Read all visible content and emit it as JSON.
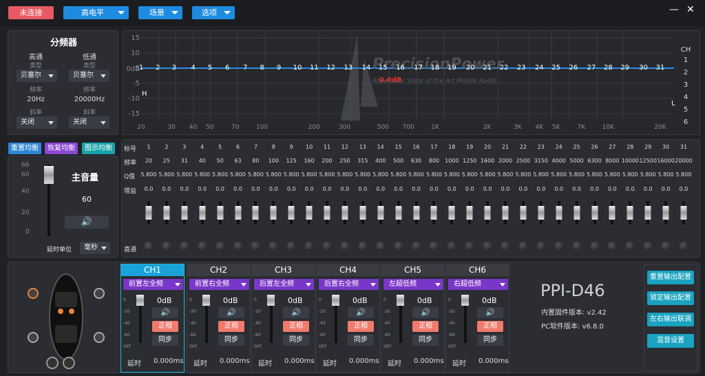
{
  "topbar": {
    "connect": "未连接",
    "level": "高电平",
    "scene": "场景",
    "options": "选项",
    "minimize": "—",
    "close": "✕"
  },
  "crossover": {
    "title": "分频器",
    "hp_label": "高通",
    "lp_label": "低通",
    "type_label": "类型",
    "hp_type": "贝塞尔",
    "lp_type": "贝塞尔",
    "freq_label": "频率",
    "hp_freq": "20Hz",
    "lp_freq": "20000Hz",
    "slope_label": "斜率",
    "hp_slope": "关闭",
    "lp_slope": "关闭"
  },
  "graph": {
    "y_labels": [
      "15",
      "10",
      "5",
      "0dB",
      "-5",
      "-10",
      "-15"
    ],
    "x_labels": [
      "20",
      "30",
      "40",
      "50",
      "70",
      "100",
      "200",
      "300",
      "500",
      "700",
      "1K",
      "2K",
      "3K",
      "4K",
      "5K",
      "7K",
      "10K",
      "20K"
    ],
    "h_marker": "H",
    "l_marker": "L",
    "db_readout": "0.0dB",
    "watermark": "PrecisionPower",
    "watermark_sub": "Absolutely State of the Art Mobile Audio",
    "ch_title": "CH",
    "ch_list": [
      "1",
      "2",
      "3",
      "4",
      "5",
      "6"
    ],
    "line_color": "#2e8be6"
  },
  "eq_buttons": {
    "reset": "重置均衡",
    "restore": "恢复均衡",
    "graphic": "图示均衡"
  },
  "master": {
    "scale": [
      "66",
      "60",
      "40",
      "20",
      "0"
    ],
    "label": "主音量",
    "value": "60",
    "delay_unit_label": "延时单位",
    "delay_unit": "毫秒"
  },
  "eq_table": {
    "row_labels": [
      "标号",
      "频率",
      "Q值",
      "增益",
      "直通"
    ],
    "bands": [
      "1",
      "2",
      "3",
      "4",
      "5",
      "6",
      "7",
      "8",
      "9",
      "10",
      "11",
      "12",
      "13",
      "14",
      "15",
      "16",
      "17",
      "18",
      "19",
      "20",
      "21",
      "22",
      "23",
      "24",
      "25",
      "26",
      "27",
      "28",
      "29",
      "30",
      "31"
    ],
    "freqs": [
      "20",
      "25",
      "31",
      "40",
      "50",
      "63",
      "80",
      "100",
      "125",
      "160",
      "200",
      "250",
      "315",
      "400",
      "500",
      "630",
      "800",
      "1000",
      "1250",
      "1600",
      "2000",
      "2500",
      "3150",
      "4000",
      "5000",
      "6300",
      "8000",
      "10000",
      "12500",
      "16000",
      "20000"
    ],
    "q": "5.800",
    "gain": "0.0"
  },
  "channels": [
    {
      "name": "CH1",
      "position": "前置左全频",
      "db": "0dB",
      "phase": "正相",
      "sync": "同步",
      "delay_label": "延时",
      "delay": "0.000ms"
    },
    {
      "name": "CH2",
      "position": "前置右全频",
      "db": "0dB",
      "phase": "正相",
      "sync": "同步",
      "delay_label": "延时",
      "delay": "0.000ms"
    },
    {
      "name": "CH3",
      "position": "后置左全频",
      "db": "0dB",
      "phase": "正相",
      "sync": "同步",
      "delay_label": "延时",
      "delay": "0.000ms"
    },
    {
      "name": "CH4",
      "position": "后置右全频",
      "db": "0dB",
      "phase": "正相",
      "sync": "同步",
      "delay_label": "延时",
      "delay": "0.000ms"
    },
    {
      "name": "CH5",
      "position": "左超低频",
      "db": "0dB",
      "phase": "正相",
      "sync": "同步",
      "delay_label": "延时",
      "delay": "0.000ms"
    },
    {
      "name": "CH6",
      "position": "右超低频",
      "db": "0dB",
      "phase": "正相",
      "sync": "同步",
      "delay_label": "延时",
      "delay": "0.000ms"
    }
  ],
  "ch_scale": [
    "0",
    "-20",
    "-40",
    "-60",
    "OFF"
  ],
  "device": {
    "model": "PPI-D46",
    "firmware": "内置固件版本: v2.42",
    "software": "PC软件版本: v6.8.0"
  },
  "right_buttons": {
    "reset_out": "重置输出配置",
    "lock_out": "锁定输出配置",
    "link_out": "左右输出联调",
    "mix": "混音设置"
  }
}
